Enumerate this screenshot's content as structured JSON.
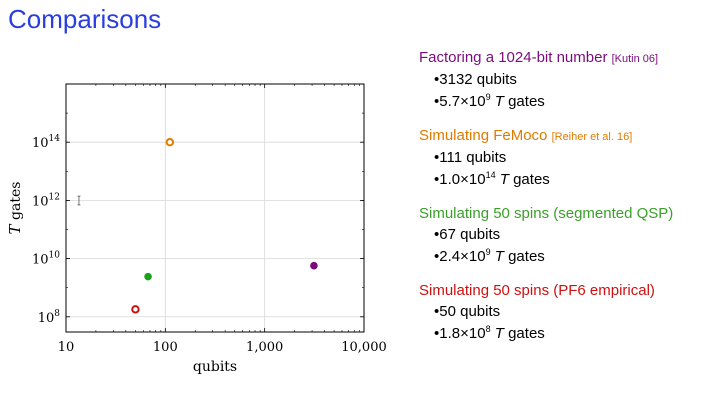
{
  "slide": {
    "title": "Comparisons"
  },
  "chart_data": {
    "type": "scatter",
    "xscale": "log",
    "yscale": "log",
    "xlabel": "qubits",
    "ylabel": "T gates",
    "xlim": [
      10,
      10000
    ],
    "ylim": [
      30000000,
      10000000000000000
    ],
    "x_ticks": [
      "10",
      "100",
      "1,000",
      "10,000"
    ],
    "y_ticks": [
      {
        "base": "10",
        "exp": "8"
      },
      {
        "base": "10",
        "exp": "10"
      },
      {
        "base": "10",
        "exp": "12"
      },
      {
        "base": "10",
        "exp": "14"
      }
    ],
    "points": [
      {
        "name": "Factoring a 1024-bit number",
        "x": 3132,
        "y": 5700000000,
        "color": "#7b0c7b",
        "filled": true
      },
      {
        "name": "Simulating FeMoco",
        "x": 111,
        "y": 100000000000000,
        "color": "#e07b00",
        "filled": false
      },
      {
        "name": "Simulating 50 spins (segmented QSP)",
        "x": 67,
        "y": 2400000000,
        "color": "#1aa01a",
        "filled": true
      },
      {
        "name": "Simulating 50 spins (PF6 empirical)",
        "x": 50,
        "y": 180000000,
        "color": "#d01010",
        "filled": false
      }
    ],
    "error_bar": {
      "x": 13.5,
      "y_low": 700000000000,
      "y_high": 1400000000000
    }
  },
  "legend": [
    {
      "color": "#7b0c7b",
      "title": "Factoring a 1024-bit number",
      "cite": "[Kutin 06]",
      "qubits": "3132 qubits",
      "gates_num": "5.7×10",
      "gates_exp": "9",
      "gates_T": "T",
      "gates_unit": "gates"
    },
    {
      "color": "#e07b00",
      "title": "Simulating FeMoco",
      "cite": "[Reiher et al. 16]",
      "qubits": "111 qubits",
      "gates_num": "1.0×10",
      "gates_exp": "14",
      "gates_T": "T",
      "gates_unit": "gates"
    },
    {
      "color": "#3aa02a",
      "title": "Simulating 50 spins (segmented QSP)",
      "cite": "",
      "qubits": "67 qubits",
      "gates_num": "2.4×10",
      "gates_exp": "9",
      "gates_T": "T",
      "gates_unit": "gates"
    },
    {
      "color": "#d01010",
      "title": "Simulating 50 spins (PF6 empirical)",
      "cite": "",
      "qubits": "50 qubits",
      "gates_num": "1.8×10",
      "gates_exp": "8",
      "gates_T": "T",
      "gates_unit": "gates"
    }
  ]
}
